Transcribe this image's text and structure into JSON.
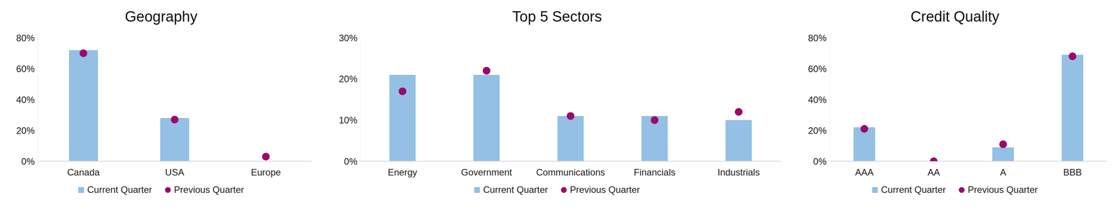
{
  "chart_data": [
    {
      "type": "bar",
      "title": "Geography",
      "categories": [
        "Canada",
        "USA",
        "Europe"
      ],
      "series": [
        {
          "name": "Current Quarter",
          "type": "bar",
          "color": "#93c0e4",
          "values": [
            72,
            28,
            0
          ]
        },
        {
          "name": "Previous Quarter",
          "type": "scatter",
          "marker": "circle",
          "color": "#9b0a6a",
          "values": [
            70,
            27,
            3
          ]
        }
      ],
      "ylim": [
        0,
        80
      ],
      "yticks": [
        {
          "value": 0,
          "label": "0%"
        },
        {
          "value": 20,
          "label": "20%"
        },
        {
          "value": 40,
          "label": "40%"
        },
        {
          "value": 60,
          "label": "60%"
        },
        {
          "value": 80,
          "label": "80%"
        }
      ],
      "grid": false,
      "legend": "bottom"
    },
    {
      "type": "bar",
      "title": "Top 5 Sectors",
      "categories": [
        "Energy",
        "Government",
        "Communications",
        "Financials",
        "Industrials"
      ],
      "series": [
        {
          "name": "Current Quarter",
          "type": "bar",
          "color": "#93c0e4",
          "values": [
            21,
            21,
            11,
            11,
            10
          ]
        },
        {
          "name": "Previous Quarter",
          "type": "scatter",
          "marker": "circle",
          "color": "#9b0a6a",
          "values": [
            17,
            22,
            11,
            10,
            12
          ]
        }
      ],
      "ylim": [
        0,
        30
      ],
      "yticks": [
        {
          "value": 0,
          "label": "0%"
        },
        {
          "value": 10,
          "label": "10%"
        },
        {
          "value": 20,
          "label": "20%"
        },
        {
          "value": 30,
          "label": "30%"
        }
      ],
      "grid": false,
      "legend": "bottom"
    },
    {
      "type": "bar",
      "title": "Credit Quality",
      "categories": [
        "AAA",
        "AA",
        "A",
        "BBB"
      ],
      "series": [
        {
          "name": "Current Quarter",
          "type": "bar",
          "color": "#93c0e4",
          "values": [
            22,
            0,
            9,
            69
          ]
        },
        {
          "name": "Previous Quarter",
          "type": "scatter",
          "marker": "circle",
          "color": "#9b0a6a",
          "values": [
            21,
            0,
            11,
            68
          ]
        }
      ],
      "ylim": [
        0,
        80
      ],
      "yticks": [
        {
          "value": 0,
          "label": "0%"
        },
        {
          "value": 20,
          "label": "20%"
        },
        {
          "value": 40,
          "label": "40%"
        },
        {
          "value": 60,
          "label": "60%"
        },
        {
          "value": 80,
          "label": "80%"
        }
      ],
      "grid": false,
      "legend": "bottom"
    }
  ]
}
